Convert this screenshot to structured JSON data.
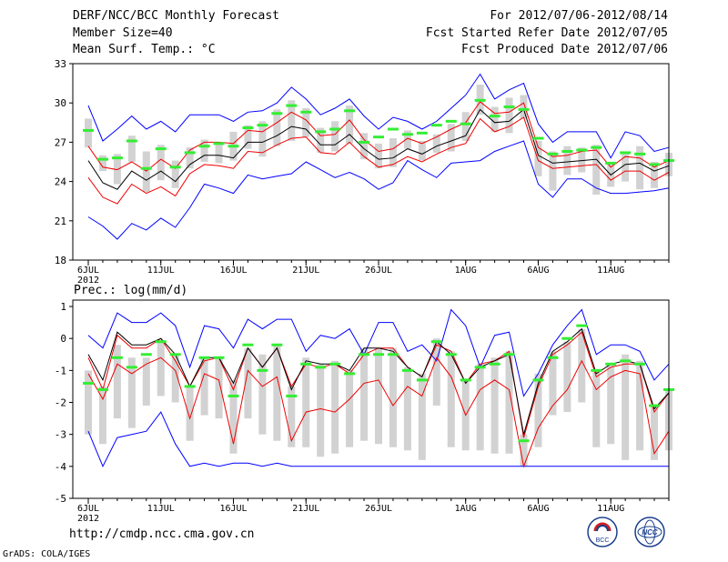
{
  "header": {
    "title": "DERF/NCC/BCC Monthly Forecast",
    "member_size": "Member Size=40",
    "variable": "Mean Surf. Temp.: °C",
    "period": "For 2012/07/06-2012/08/14",
    "fcst_started": "Fcst Started Refer Date 2012/07/05",
    "fcst_produced": "Fcst Produced Date 2012/07/06"
  },
  "footer": {
    "url": "http://cmdp.ncc.cma.gov.cn",
    "credit": "GrADS: COLA/IGES",
    "logo_bcc": "BCC",
    "logo_ncc": "NCC"
  },
  "colors": {
    "max_min": "#0000ff",
    "spread": "#d2d2d2",
    "obs": "#33ee33",
    "mean": "#000000",
    "percentile": "#ee0000"
  },
  "chart_data": [
    {
      "type": "line",
      "name": "temperature",
      "ylim": [
        18,
        33
      ],
      "yticks": [
        18,
        21,
        24,
        27,
        30,
        33
      ],
      "xlabels": [
        {
          "day": 0,
          "label": "6JUL"
        },
        {
          "day": 5,
          "label": "11JUL"
        },
        {
          "day": 10,
          "label": "16JUL"
        },
        {
          "day": 15,
          "label": "21JUL"
        },
        {
          "day": 20,
          "label": "26JUL"
        },
        {
          "day": 26,
          "label": "1AUG"
        },
        {
          "day": 31,
          "label": "6AUG"
        },
        {
          "day": 36,
          "label": "11AUG"
        }
      ],
      "year_label": "2012",
      "max": [
        29.8,
        27.1,
        28.0,
        29.0,
        28.0,
        28.6,
        27.8,
        29.1,
        29.1,
        29.1,
        28.6,
        29.3,
        29.4,
        30.0,
        31.2,
        30.3,
        29.1,
        29.6,
        30.3,
        29.0,
        28.0,
        28.9,
        28.6,
        28.0,
        28.6,
        29.6,
        30.6,
        32.2,
        30.3,
        31.0,
        31.5,
        28.4,
        27.0,
        27.8,
        27.8,
        27.8,
        25.8,
        27.8,
        27.5,
        26.3,
        26.6
      ],
      "p90": [
        26.7,
        25.1,
        24.9,
        25.5,
        24.8,
        25.7,
        25.0,
        26.4,
        27.0,
        27.0,
        26.9,
        27.9,
        27.8,
        28.5,
        29.3,
        28.7,
        27.5,
        27.6,
        28.7,
        27.2,
        26.3,
        26.5,
        27.3,
        26.9,
        27.4,
        28.0,
        28.5,
        30.1,
        29.2,
        29.3,
        30.0,
        26.6,
        25.9,
        26.0,
        26.3,
        26.4,
        25.1,
        25.9,
        25.8,
        25.1,
        25.6
      ],
      "mean": [
        25.6,
        23.9,
        23.4,
        24.8,
        24.1,
        24.8,
        24.0,
        25.3,
        26.0,
        26.0,
        25.8,
        27.0,
        27.0,
        27.5,
        28.2,
        28.0,
        26.8,
        26.8,
        27.6,
        26.5,
        25.7,
        25.8,
        26.5,
        26.1,
        26.7,
        27.1,
        27.5,
        29.5,
        28.5,
        28.6,
        29.5,
        26.0,
        25.4,
        25.5,
        25.6,
        25.7,
        24.5,
        25.3,
        25.4,
        24.8,
        25.2
      ],
      "p10": [
        24.3,
        22.8,
        22.3,
        23.8,
        23.1,
        23.6,
        22.9,
        24.6,
        25.3,
        25.2,
        25.0,
        26.3,
        26.2,
        26.8,
        27.3,
        27.4,
        26.2,
        26.1,
        27.0,
        25.9,
        25.1,
        25.3,
        25.9,
        25.5,
        26.1,
        26.6,
        26.9,
        28.8,
        27.8,
        28.2,
        28.9,
        25.6,
        25.0,
        25.1,
        25.2,
        25.3,
        24.1,
        24.8,
        24.8,
        24.1,
        24.7
      ],
      "min": [
        21.3,
        20.6,
        19.6,
        20.8,
        20.3,
        21.2,
        20.5,
        22.0,
        23.8,
        23.5,
        23.1,
        24.5,
        24.2,
        24.4,
        24.6,
        25.5,
        24.9,
        24.3,
        24.7,
        24.2,
        23.4,
        23.9,
        25.6,
        24.9,
        24.3,
        25.4,
        25.5,
        25.6,
        26.3,
        26.7,
        27.1,
        23.8,
        22.8,
        24.2,
        24.2,
        23.5,
        23.1,
        23.1,
        23.2,
        23.3,
        23.5
      ],
      "bar_top": [
        28.8,
        26.0,
        26.1,
        27.5,
        26.3,
        26.8,
        25.6,
        26.6,
        27.2,
        27.0,
        27.8,
        28.3,
        28.6,
        29.5,
        30.2,
        29.6,
        28.1,
        28.6,
        29.8,
        27.7,
        26.9,
        27.3,
        27.9,
        27.1,
        27.6,
        28.4,
        29.3,
        31.4,
        29.7,
        30.4,
        30.6,
        27.1,
        26.3,
        26.7,
        26.6,
        26.8,
        25.5,
        26.3,
        26.7,
        25.5,
        26.2
      ],
      "bar_bottom": [
        26.6,
        24.8,
        23.8,
        25.5,
        23.2,
        24.1,
        23.5,
        25.0,
        25.5,
        25.4,
        25.6,
        26.5,
        25.9,
        26.7,
        27.1,
        27.4,
        26.2,
        26.3,
        26.9,
        25.7,
        25.0,
        25.1,
        26.5,
        25.6,
        26.2,
        26.3,
        27.1,
        29.1,
        27.8,
        27.7,
        28.8,
        24.4,
        23.3,
        24.5,
        24.7,
        23.0,
        23.6,
        24.0,
        23.4,
        23.5,
        24.4
      ],
      "obs": [
        27.9,
        25.7,
        25.8,
        27.1,
        25.0,
        26.5,
        25.1,
        26.2,
        26.7,
        26.9,
        26.7,
        28.1,
        28.3,
        29.2,
        29.8,
        29.3,
        27.8,
        28.0,
        29.4,
        27.0,
        27.4,
        28.0,
        27.6,
        27.7,
        28.3,
        28.6,
        28.4,
        30.2,
        29.0,
        29.7,
        29.5,
        27.3,
        26.1,
        26.3,
        26.4,
        26.6,
        25.4,
        26.2,
        26.1,
        25.3,
        25.6
      ]
    },
    {
      "type": "line",
      "name": "precipitation",
      "title": "Prec.: log(mm/d)",
      "ylim": [
        -5,
        1.2
      ],
      "yticks": [
        -5,
        -4,
        -3,
        -2,
        -1,
        0,
        1
      ],
      "xlabels": [
        {
          "day": 0,
          "label": "6JUL"
        },
        {
          "day": 5,
          "label": "11JUL"
        },
        {
          "day": 10,
          "label": "16JUL"
        },
        {
          "day": 15,
          "label": "21JUL"
        },
        {
          "day": 20,
          "label": "26JUL"
        },
        {
          "day": 26,
          "label": "1AUG"
        },
        {
          "day": 31,
          "label": "6AUG"
        },
        {
          "day": 36,
          "label": "11AUG"
        }
      ],
      "year_label": "2012",
      "max": [
        0.1,
        -0.3,
        0.8,
        0.5,
        0.5,
        0.8,
        0.4,
        -0.9,
        0.4,
        0.3,
        -0.3,
        0.6,
        0.3,
        0.6,
        0.6,
        -0.4,
        0.1,
        0.0,
        0.3,
        -0.5,
        0.5,
        0.5,
        -0.4,
        -0.2,
        -0.7,
        0.9,
        0.4,
        -0.9,
        0.1,
        0.2,
        -1.8,
        -1.1,
        -0.2,
        0.4,
        0.9,
        -0.5,
        -0.2,
        -0.2,
        -0.4,
        -1.3,
        -0.8
      ],
      "p90": [
        -0.6,
        -1.6,
        0.1,
        -0.3,
        -0.3,
        0.0,
        -0.7,
        -1.5,
        -0.7,
        -0.6,
        -1.6,
        -0.3,
        -0.9,
        -0.3,
        -1.5,
        -0.8,
        -0.9,
        -0.8,
        -1.1,
        -0.5,
        -0.3,
        -0.3,
        -0.9,
        -1.2,
        -0.2,
        -0.4,
        -1.4,
        -0.8,
        -0.7,
        -0.4,
        -3.1,
        -1.5,
        -0.5,
        -0.2,
        0.2,
        -1.2,
        -0.9,
        -0.8,
        -0.8,
        -2.3,
        -1.7
      ],
      "mean": [
        -0.5,
        -1.3,
        0.2,
        -0.2,
        -0.2,
        0.0,
        -0.5,
        -1.5,
        -0.6,
        -0.6,
        -1.4,
        -0.3,
        -0.9,
        -0.3,
        -1.6,
        -0.7,
        -0.8,
        -0.8,
        -1.0,
        -0.3,
        -0.3,
        -0.4,
        -0.9,
        -1.2,
        -0.1,
        -0.5,
        -1.4,
        -0.9,
        -0.7,
        -0.5,
        -3.0,
        -1.4,
        -0.4,
        -0.1,
        0.3,
        -1.1,
        -0.8,
        -0.7,
        -0.8,
        -2.2,
        -1.7
      ],
      "p10": [
        -1.1,
        -1.9,
        -0.8,
        -1.1,
        -0.8,
        -0.6,
        -1.0,
        -2.5,
        -1.1,
        -1.3,
        -3.3,
        -1.0,
        -1.5,
        -1.2,
        -3.2,
        -2.3,
        -2.2,
        -2.3,
        -1.9,
        -1.4,
        -1.3,
        -2.1,
        -1.5,
        -1.8,
        -0.6,
        -1.2,
        -2.4,
        -1.6,
        -1.3,
        -1.6,
        -4.0,
        -2.8,
        -2.1,
        -1.6,
        -0.7,
        -1.6,
        -1.2,
        -1.0,
        -1.1,
        -3.6,
        -2.9
      ],
      "min": [
        -2.9,
        -4.0,
        -3.1,
        -3.0,
        -2.9,
        -2.3,
        -3.3,
        -4.0,
        -3.9,
        -4.0,
        -3.9,
        -3.9,
        -4.0,
        -3.9,
        -4.0,
        -4.0,
        -4.0,
        -4.0,
        -4.0,
        -4.0,
        -4.0,
        -4.0,
        -4.0,
        -4.0,
        -4.0,
        -4.0,
        -4.0,
        -4.0,
        -4.0,
        -4.0,
        -4.0,
        -4.0,
        -4.0,
        -4.0,
        -4.0,
        -4.0,
        -4.0,
        -4.0,
        -4.0,
        -4.0,
        -4.0
      ],
      "bar_top": [
        -1.0,
        -1.5,
        -0.2,
        -0.6,
        -0.6,
        -0.1,
        -0.5,
        -1.5,
        -0.6,
        -0.6,
        -1.3,
        -0.3,
        -0.5,
        -0.2,
        -1.5,
        -0.6,
        -0.8,
        -0.7,
        -1.0,
        -0.3,
        -0.3,
        -0.3,
        -0.9,
        -1.1,
        0.0,
        -0.4,
        -1.3,
        -0.8,
        -0.6,
        -0.4,
        -3.0,
        -1.1,
        -0.4,
        -0.1,
        0.3,
        -1.0,
        -0.8,
        -0.5,
        -0.7,
        -2.1,
        -1.6
      ],
      "bar_bottom": [
        -3.0,
        -3.3,
        -2.5,
        -2.8,
        -2.1,
        -1.8,
        -2.0,
        -3.2,
        -2.4,
        -2.5,
        -3.6,
        -2.5,
        -3.0,
        -3.2,
        -3.4,
        -3.4,
        -3.7,
        -3.6,
        -3.4,
        -3.2,
        -3.3,
        -3.4,
        -3.5,
        -3.8,
        -2.1,
        -3.4,
        -3.5,
        -3.5,
        -3.6,
        -3.6,
        -4.0,
        -3.4,
        -2.4,
        -2.3,
        -2.0,
        -3.4,
        -3.3,
        -3.8,
        -3.5,
        -3.8,
        -3.5
      ],
      "obs": [
        -1.4,
        -1.6,
        -0.6,
        -0.9,
        -0.5,
        -0.1,
        -0.5,
        -1.5,
        -0.6,
        -0.6,
        -1.8,
        -0.2,
        -1.0,
        -0.2,
        -1.8,
        -0.8,
        -0.9,
        -0.8,
        -1.1,
        -0.5,
        -0.5,
        -0.5,
        -1.0,
        -1.3,
        -0.1,
        -0.5,
        -1.3,
        -0.9,
        -0.8,
        -0.5,
        -3.2,
        -1.3,
        -0.6,
        0.0,
        0.4,
        -1.0,
        -0.8,
        -0.7,
        -0.8,
        -2.1,
        -1.6
      ]
    }
  ]
}
